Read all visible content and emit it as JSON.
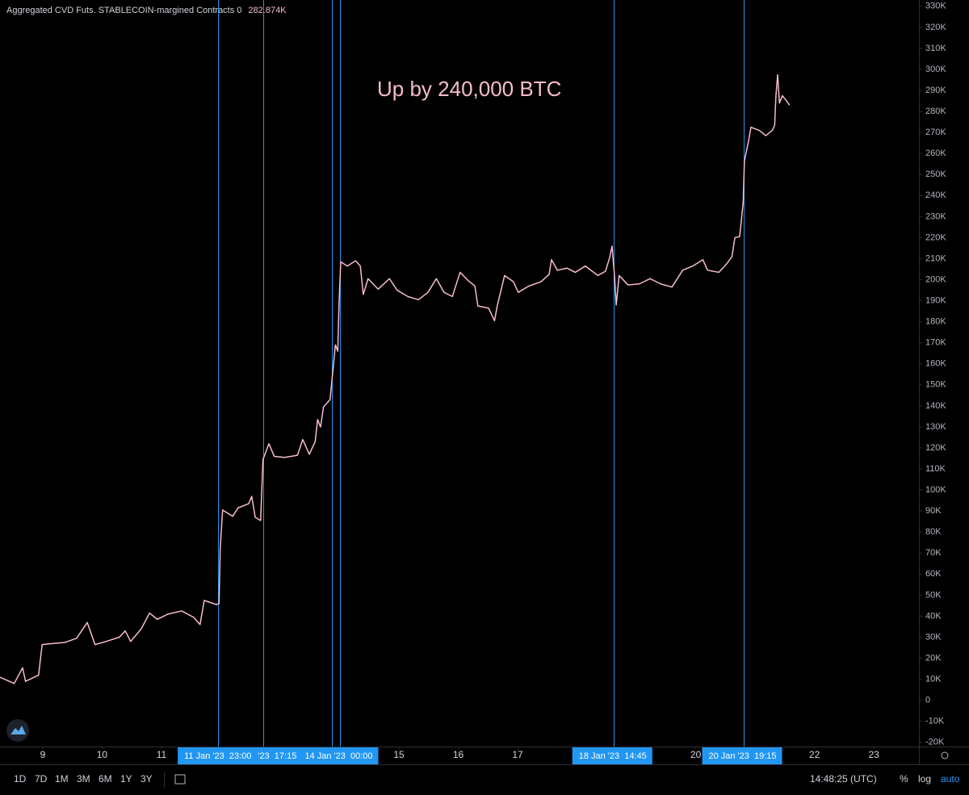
{
  "chart_data": {
    "type": "line",
    "annotation": "Up by 240,000 BTC",
    "legend_value": "282.874K",
    "series": [
      {
        "name": "Aggregated CVD Futs. STABLECOIN-margined Contracts 0",
        "color": "#f8bbd0",
        "values": [
          11000,
          8000,
          15500,
          9000,
          12000,
          26500,
          27000,
          27500,
          29500,
          37000,
          26500,
          28000,
          30000,
          33000,
          28000,
          34000,
          41500,
          38500,
          41000,
          42500,
          39500,
          36000,
          47500,
          45500,
          46000,
          72500,
          90500,
          87500,
          91500,
          93500,
          97000,
          87000,
          85500,
          114500,
          122000,
          116000,
          115500,
          116500,
          124000,
          117000,
          123000,
          133500,
          130000,
          139500,
          143000,
          154500,
          169000,
          166000,
          187500,
          208500,
          206500,
          209000,
          206500,
          193000,
          200500,
          195500,
          200500,
          195000,
          192000,
          190500,
          194000,
          200500,
          194000,
          192000,
          203500,
          199500,
          197000,
          187500,
          186500,
          180500,
          188000,
          202000,
          199000,
          194000,
          197000,
          199000,
          202500,
          209500,
          204500,
          205500,
          203500,
          206500,
          202000,
          204000,
          210500,
          216000,
          202500,
          188000,
          202000,
          197500,
          198000,
          200500,
          198000,
          196500,
          204500,
          206500,
          209500,
          204500,
          203500,
          207500,
          211000,
          220000,
          220500,
          237000,
          256500,
          266000,
          272500,
          271000,
          268500,
          271000,
          273500,
          287000,
          297500,
          284000,
          287500,
          285000,
          283000
        ]
      }
    ],
    "x": [
      8.28,
      8.52,
      8.66,
      8.71,
      8.93,
      8.99,
      9.16,
      9.37,
      9.57,
      9.75,
      9.88,
      10.07,
      10.29,
      10.39,
      10.48,
      10.66,
      10.8,
      10.93,
      11.11,
      11.34,
      11.54,
      11.65,
      11.72,
      11.93,
      11.97,
      11.99,
      12.03,
      12.2,
      12.29,
      12.47,
      12.52,
      12.58,
      12.67,
      12.71,
      12.81,
      12.9,
      13.07,
      13.29,
      13.38,
      13.49,
      13.59,
      13.63,
      13.68,
      13.73,
      13.84,
      13.88,
      13.93,
      13.97,
      13.99,
      14.02,
      14.13,
      14.27,
      14.35,
      14.4,
      14.48,
      14.65,
      14.84,
      14.97,
      15.15,
      15.33,
      15.49,
      15.63,
      15.76,
      15.9,
      16.03,
      16.17,
      16.28,
      16.33,
      16.51,
      16.61,
      16.66,
      16.78,
      16.93,
      17.01,
      17.19,
      17.39,
      17.53,
      17.57,
      17.67,
      17.83,
      17.97,
      18.14,
      18.35,
      18.48,
      18.55,
      18.59,
      18.63,
      18.66,
      18.71,
      18.86,
      19.05,
      19.23,
      19.41,
      19.6,
      19.78,
      19.95,
      20.12,
      20.2,
      20.39,
      20.52,
      20.61,
      20.66,
      20.74,
      20.8,
      20.82,
      20.89,
      20.93,
      21.07,
      21.18,
      21.29,
      21.33,
      21.35,
      21.38,
      21.41,
      21.46,
      21.53,
      21.58
    ],
    "markers": [
      {
        "x": 11.958,
        "label": "11 Jan '23  23:00"
      },
      {
        "x": 12.719,
        "label": "'23  17:15"
      },
      {
        "x": 13.87,
        "label": null
      },
      {
        "x": 14.0,
        "label": "14 Jan '23  00:00"
      },
      {
        "x": 18.615,
        "label": "18 Jan '23  14:45"
      },
      {
        "x": 20.802,
        "label": "20 Jan '23  19:15"
      }
    ],
    "marker_color": "#2196f3",
    "xlim": [
      8.28,
      23.76
    ],
    "xticks": [
      9,
      10,
      11,
      15,
      16,
      17,
      20,
      22,
      23
    ],
    "ylim": [
      -22000,
      333000
    ],
    "yticks": [
      {
        "value": 330000,
        "label": "330K"
      },
      {
        "value": 320000,
        "label": "320K"
      },
      {
        "value": 310000,
        "label": "310K"
      },
      {
        "value": 300000,
        "label": "300K"
      },
      {
        "value": 290000,
        "label": "290K"
      },
      {
        "value": 280000,
        "label": "280K"
      },
      {
        "value": 270000,
        "label": "270K"
      },
      {
        "value": 260000,
        "label": "260K"
      },
      {
        "value": 250000,
        "label": "250K"
      },
      {
        "value": 240000,
        "label": "240K"
      },
      {
        "value": 230000,
        "label": "230K"
      },
      {
        "value": 220000,
        "label": "220K"
      },
      {
        "value": 210000,
        "label": "210K"
      },
      {
        "value": 200000,
        "label": "200K"
      },
      {
        "value": 190000,
        "label": "190K"
      },
      {
        "value": 180000,
        "label": "180K"
      },
      {
        "value": 170000,
        "label": "170K"
      },
      {
        "value": 160000,
        "label": "160K"
      },
      {
        "value": 150000,
        "label": "150K"
      },
      {
        "value": 140000,
        "label": "140K"
      },
      {
        "value": 130000,
        "label": "130K"
      },
      {
        "value": 120000,
        "label": "120K"
      },
      {
        "value": 110000,
        "label": "110K"
      },
      {
        "value": 100000,
        "label": "100K"
      },
      {
        "value": 90000,
        "label": "90K"
      },
      {
        "value": 80000,
        "label": "80K"
      },
      {
        "value": 70000,
        "label": "70K"
      },
      {
        "value": 60000,
        "label": "60K"
      },
      {
        "value": 50000,
        "label": "50K"
      },
      {
        "value": 40000,
        "label": "40K"
      },
      {
        "value": 30000,
        "label": "30K"
      },
      {
        "value": 20000,
        "label": "20K"
      },
      {
        "value": 10000,
        "label": "10K"
      },
      0,
      {
        "value": -10000,
        "label": "-10K"
      },
      {
        "value": -20000,
        "label": "-20K"
      }
    ]
  },
  "toolbar": {
    "ranges": [
      "1D",
      "7D",
      "1M",
      "3M",
      "6M",
      "1Y",
      "3Y"
    ],
    "clock": "14:48:25 (UTC)",
    "options": [
      "%",
      "log",
      "auto"
    ]
  }
}
